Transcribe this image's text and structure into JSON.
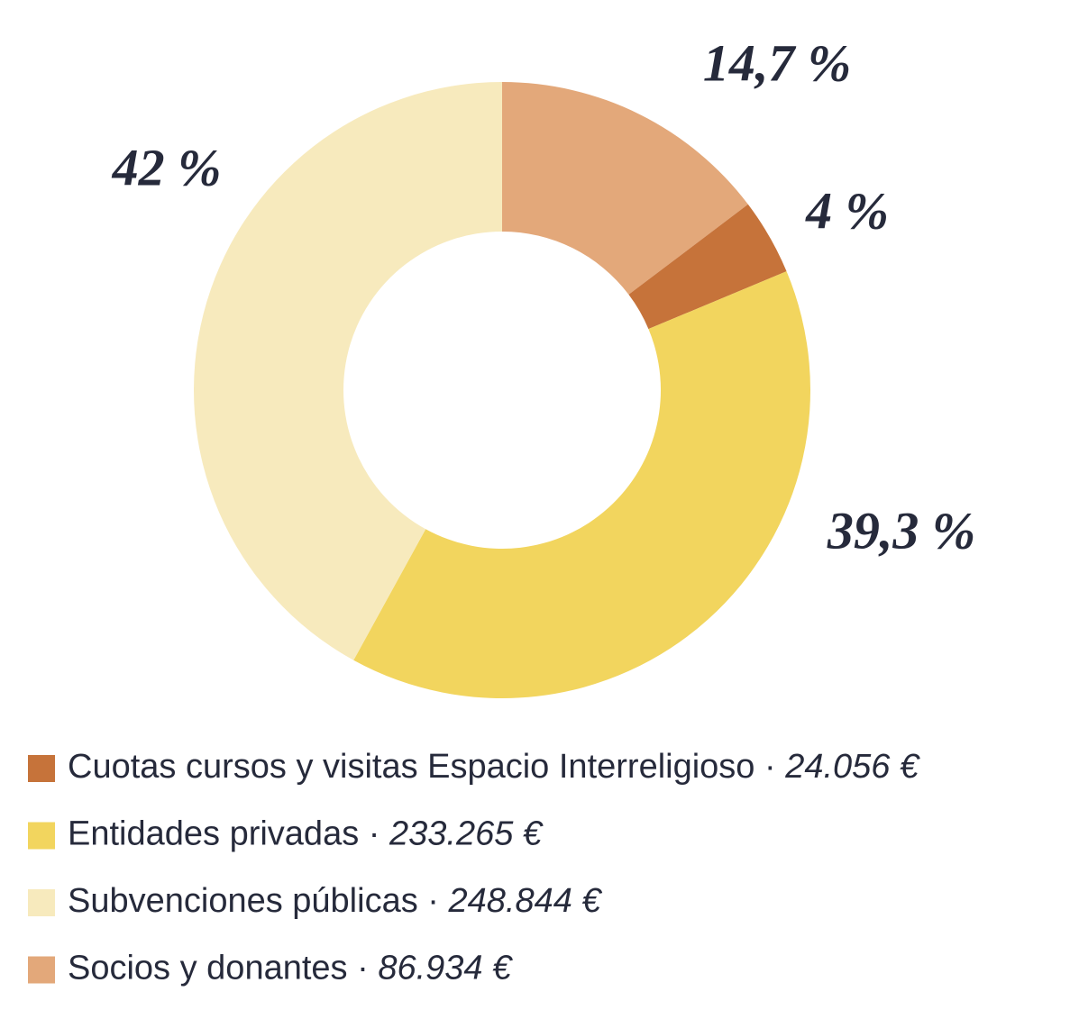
{
  "chart_data": {
    "type": "pie",
    "categories": [
      "Cuotas cursos y visitas Espacio Interreligioso",
      "Entidades privadas",
      "Subvenciones públicas",
      "Socios y donantes"
    ],
    "values": [
      4,
      39.3,
      42,
      14.7
    ],
    "value_labels": [
      "4 %",
      "39,3 %",
      "42 %",
      "14,7 %"
    ],
    "colors": [
      "#c6733a",
      "#f2d55e",
      "#f7eabd",
      "#e3a87a"
    ],
    "amounts": [
      24056,
      233265,
      248844,
      86934
    ],
    "amount_labels": [
      "24.056 €",
      "233.265 €",
      "248.844 €",
      "86.934 €"
    ],
    "legend_separator": "·",
    "donut": true
  }
}
